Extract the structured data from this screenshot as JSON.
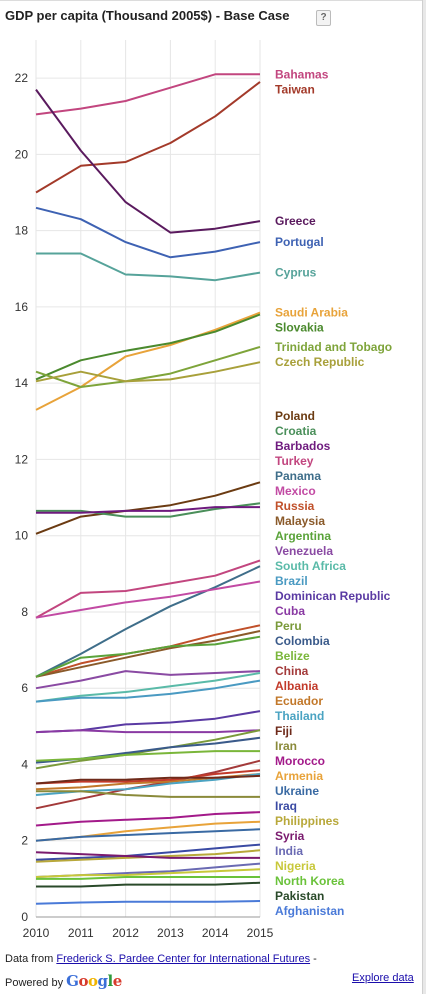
{
  "header": {
    "title": "GDP per capita (Thousand 2005$) - Base Case",
    "help_label": "?"
  },
  "footer": {
    "data_prefix": "Data from ",
    "data_link": "Frederick S. Pardee Center for International Futures",
    "data_suffix": " -",
    "powered_by": "Powered by ",
    "google_letters": [
      "G",
      "o",
      "o",
      "g",
      "l",
      "e"
    ],
    "explore_label": "Explore data"
  },
  "chart_data": {
    "type": "line",
    "title": "GDP per capita (Thousand 2005$) - Base Case",
    "xlabel": "",
    "ylabel": "",
    "x": [
      2010,
      2011,
      2012,
      2013,
      2014,
      2015
    ],
    "xlim": [
      2010,
      2015
    ],
    "ylim": [
      0,
      23
    ],
    "yticks": [
      0,
      2,
      4,
      6,
      8,
      10,
      12,
      14,
      16,
      18,
      20,
      22
    ],
    "grid": true,
    "legend": "right",
    "series": [
      {
        "name": "Bahamas",
        "color": "#c2467f",
        "values": [
          21.05,
          21.2,
          21.4,
          21.75,
          22.1,
          22.1
        ]
      },
      {
        "name": "Taiwan",
        "color": "#a33a2a",
        "values": [
          19.0,
          19.7,
          19.8,
          20.3,
          21.0,
          21.9
        ]
      },
      {
        "name": "Greece",
        "color": "#5a1a5e",
        "values": [
          21.7,
          20.1,
          18.75,
          17.95,
          18.05,
          18.25
        ]
      },
      {
        "name": "Portugal",
        "color": "#3e62b3",
        "values": [
          18.6,
          18.3,
          17.7,
          17.3,
          17.45,
          17.7
        ]
      },
      {
        "name": "Cyprus",
        "color": "#56a39a",
        "values": [
          17.4,
          17.4,
          16.85,
          16.8,
          16.7,
          16.9
        ]
      },
      {
        "name": "Saudi Arabia",
        "color": "#e8a33a",
        "values": [
          13.3,
          13.9,
          14.7,
          15.0,
          15.4,
          15.85
        ]
      },
      {
        "name": "Slovakia",
        "color": "#4b8a2e",
        "values": [
          14.1,
          14.6,
          14.85,
          15.05,
          15.35,
          15.8
        ]
      },
      {
        "name": "Trinidad and Tobago",
        "color": "#7ea43a",
        "values": [
          14.3,
          13.9,
          14.05,
          14.25,
          14.6,
          14.95
        ]
      },
      {
        "name": "Czech Republic",
        "color": "#a8a03a",
        "values": [
          14.05,
          14.3,
          14.05,
          14.1,
          14.3,
          14.55
        ]
      },
      {
        "name": "Poland",
        "color": "#6b3b12",
        "values": [
          10.05,
          10.5,
          10.65,
          10.8,
          11.05,
          11.4
        ]
      },
      {
        "name": "Croatia",
        "color": "#4a8f5a",
        "values": [
          10.65,
          10.65,
          10.5,
          10.5,
          10.7,
          10.85
        ]
      },
      {
        "name": "Barbados",
        "color": "#6e1a7e",
        "values": [
          10.6,
          10.6,
          10.65,
          10.65,
          10.75,
          10.75
        ]
      },
      {
        "name": "Turkey",
        "color": "#c2467f",
        "values": [
          7.85,
          8.5,
          8.55,
          8.75,
          8.95,
          9.35
        ]
      },
      {
        "name": "Panama",
        "color": "#3f6e8a",
        "values": [
          6.3,
          6.9,
          7.55,
          8.15,
          8.65,
          9.2
        ]
      },
      {
        "name": "Mexico",
        "color": "#c24aa3",
        "values": [
          7.85,
          8.05,
          8.25,
          8.4,
          8.6,
          8.8
        ]
      },
      {
        "name": "Russia",
        "color": "#c0502a",
        "values": [
          6.3,
          6.65,
          6.9,
          7.1,
          7.4,
          7.65
        ]
      },
      {
        "name": "Malaysia",
        "color": "#8a5a2a",
        "values": [
          6.3,
          6.55,
          6.8,
          7.05,
          7.25,
          7.5
        ]
      },
      {
        "name": "Argentina",
        "color": "#5aa33a",
        "values": [
          6.3,
          6.8,
          6.9,
          7.1,
          7.15,
          7.35
        ]
      },
      {
        "name": "Venezuela",
        "color": "#8a4aa3",
        "values": [
          6.0,
          6.2,
          6.45,
          6.35,
          6.4,
          6.45
        ]
      },
      {
        "name": "South Africa",
        "color": "#5abaa8",
        "values": [
          5.65,
          5.8,
          5.9,
          6.05,
          6.2,
          6.4
        ]
      },
      {
        "name": "Brazil",
        "color": "#4a9ac2",
        "values": [
          5.65,
          5.75,
          5.75,
          5.85,
          6.0,
          6.2
        ]
      },
      {
        "name": "Dominican Republic",
        "color": "#5a3aa3",
        "values": [
          4.85,
          4.9,
          5.05,
          5.1,
          5.2,
          5.4
        ]
      },
      {
        "name": "Cuba",
        "color": "#8a3aa3",
        "values": [
          4.85,
          4.9,
          4.85,
          4.85,
          4.85,
          4.9
        ]
      },
      {
        "name": "Peru",
        "color": "#7a9a3a",
        "values": [
          3.9,
          4.1,
          4.25,
          4.45,
          4.65,
          4.9
        ]
      },
      {
        "name": "Colombia",
        "color": "#3a5a8a",
        "values": [
          4.05,
          4.15,
          4.3,
          4.45,
          4.55,
          4.7
        ]
      },
      {
        "name": "Belize",
        "color": "#7ab63a",
        "values": [
          4.1,
          4.15,
          4.25,
          4.3,
          4.35,
          4.35
        ]
      },
      {
        "name": "China",
        "color": "#a33a3a",
        "values": [
          2.85,
          3.1,
          3.35,
          3.55,
          3.8,
          4.1
        ]
      },
      {
        "name": "Ecuador",
        "color": "#c2782a",
        "values": [
          3.35,
          3.4,
          3.5,
          3.55,
          3.65,
          3.75
        ]
      },
      {
        "name": "Thailand",
        "color": "#4aa3c2",
        "values": [
          3.2,
          3.3,
          3.35,
          3.5,
          3.6,
          3.75
        ]
      },
      {
        "name": "Albania",
        "color": "#c23a2a",
        "values": [
          3.5,
          3.55,
          3.55,
          3.6,
          3.75,
          3.85
        ]
      },
      {
        "name": "Fiji",
        "color": "#6e2a1a",
        "values": [
          3.5,
          3.6,
          3.6,
          3.65,
          3.65,
          3.7
        ]
      },
      {
        "name": "Iran",
        "color": "#8a8a3a",
        "values": [
          3.3,
          3.3,
          3.2,
          3.15,
          3.15,
          3.15
        ]
      },
      {
        "name": "Morocco",
        "color": "#a31a8a",
        "values": [
          2.4,
          2.5,
          2.55,
          2.6,
          2.7,
          2.75
        ]
      },
      {
        "name": "Armenia",
        "color": "#e8a33a",
        "values": [
          2.0,
          2.1,
          2.25,
          2.35,
          2.45,
          2.5
        ]
      },
      {
        "name": "Ukraine",
        "color": "#3a6aa3",
        "values": [
          2.0,
          2.1,
          2.15,
          2.2,
          2.25,
          2.3
        ]
      },
      {
        "name": "Iraq",
        "color": "#3a4aa3",
        "values": [
          1.5,
          1.55,
          1.6,
          1.7,
          1.8,
          1.9
        ]
      },
      {
        "name": "Philippines",
        "color": "#b8a83a",
        "values": [
          1.45,
          1.5,
          1.55,
          1.6,
          1.65,
          1.75
        ]
      },
      {
        "name": "Syria",
        "color": "#7a1a6e",
        "values": [
          1.7,
          1.65,
          1.6,
          1.55,
          1.55,
          1.55
        ]
      },
      {
        "name": "India",
        "color": "#6a6ab3",
        "values": [
          1.05,
          1.1,
          1.15,
          1.2,
          1.3,
          1.4
        ]
      },
      {
        "name": "Nigeria",
        "color": "#c8c83a",
        "values": [
          1.05,
          1.1,
          1.1,
          1.15,
          1.2,
          1.25
        ]
      },
      {
        "name": "North Korea",
        "color": "#6ac23a",
        "values": [
          1.0,
          1.0,
          1.05,
          1.05,
          1.05,
          1.05
        ]
      },
      {
        "name": "Pakistan",
        "color": "#2a4a2a",
        "values": [
          0.8,
          0.8,
          0.85,
          0.85,
          0.85,
          0.9
        ]
      },
      {
        "name": "Afghanistan",
        "color": "#4a7ad8",
        "values": [
          0.35,
          0.38,
          0.4,
          0.4,
          0.4,
          0.42
        ]
      }
    ]
  }
}
